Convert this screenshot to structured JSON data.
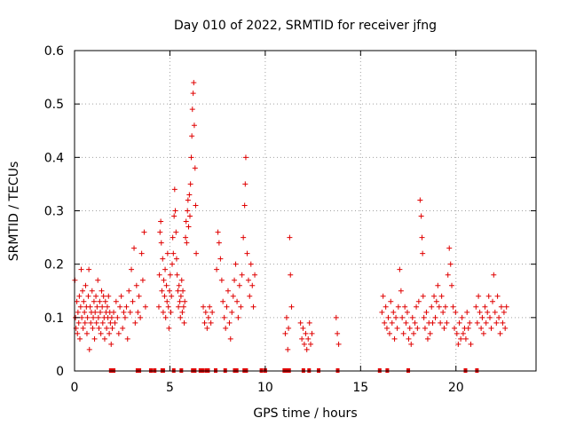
{
  "chart_data": {
    "type": "scatter",
    "title": "Day 010 of 2022, SRMTID for receiver jfng",
    "xlabel": "GPS time / hours",
    "ylabel": "SRMTID / TECUs",
    "xlim": [
      0,
      24.2
    ],
    "ylim": [
      0,
      0.6
    ],
    "x_ticks": [
      0,
      5,
      10,
      15,
      20
    ],
    "x_tick_labels": [
      "0",
      "5",
      "10",
      "15",
      "20"
    ],
    "y_ticks": [
      0,
      0.1,
      0.2,
      0.3,
      0.4,
      0.5,
      0.6
    ],
    "y_tick_labels": [
      "0",
      "0.1",
      "0.2",
      "0.3",
      "0.4",
      "0.5",
      "0.6"
    ],
    "grid": true,
    "marker": "+",
    "colors": {
      "series": "#e00000",
      "axis": "#000000",
      "grid": "#a0a0a0"
    },
    "series": [
      {
        "name": "SRMTID",
        "points": [
          [
            0.02,
            0.17
          ],
          [
            0.05,
            0.1
          ],
          [
            0.08,
            0.08
          ],
          [
            0.12,
            0.13
          ],
          [
            0.15,
            0.07
          ],
          [
            0.18,
            0.11
          ],
          [
            0.22,
            0.09
          ],
          [
            0.25,
            0.14
          ],
          [
            0.28,
            0.06
          ],
          [
            0.32,
            0.12
          ],
          [
            0.35,
            0.19
          ],
          [
            0.38,
            0.1
          ],
          [
            0.42,
            0.15
          ],
          [
            0.45,
            0.08
          ],
          [
            0.48,
            0.13
          ],
          [
            0.52,
            0.11
          ],
          [
            0.55,
            0.09
          ],
          [
            0.58,
            0.16
          ],
          [
            0.62,
            0.12
          ],
          [
            0.65,
            0.07
          ],
          [
            0.68,
            0.1
          ],
          [
            0.72,
            0.14
          ],
          [
            0.75,
            0.19
          ],
          [
            0.78,
            0.04
          ],
          [
            0.82,
            0.12
          ],
          [
            0.85,
            0.09
          ],
          [
            0.88,
            0.11
          ],
          [
            0.92,
            0.15
          ],
          [
            0.95,
            0.08
          ],
          [
            0.98,
            0.1
          ],
          [
            1.02,
            0.13
          ],
          [
            1.05,
            0.06
          ],
          [
            1.08,
            0.11
          ],
          [
            1.12,
            0.14
          ],
          [
            1.15,
            0.09
          ],
          [
            1.18,
            0.12
          ],
          [
            1.22,
            0.17
          ],
          [
            1.25,
            0.1
          ],
          [
            1.28,
            0.08
          ],
          [
            1.32,
            0.13
          ],
          [
            1.35,
            0.11
          ],
          [
            1.38,
            0.07
          ],
          [
            1.42,
            0.15
          ],
          [
            1.45,
            0.12
          ],
          [
            1.48,
            0.09
          ],
          [
            1.52,
            0.14
          ],
          [
            1.55,
            0.1
          ],
          [
            1.58,
            0.06
          ],
          [
            1.62,
            0.13
          ],
          [
            1.65,
            0.11
          ],
          [
            1.68,
            0.08
          ],
          [
            1.72,
            0.12
          ],
          [
            1.75,
            0.1
          ],
          [
            1.78,
            0.14
          ],
          [
            1.82,
            0.07
          ],
          [
            1.85,
            0.11
          ],
          [
            1.88,
            0.09
          ],
          [
            1.92,
            0.05
          ],
          [
            1.95,
            0.1
          ],
          [
            1.98,
            0.08
          ],
          [
            2.05,
            0.11
          ],
          [
            2.12,
            0.09
          ],
          [
            2.18,
            0.13
          ],
          [
            2.25,
            0.1
          ],
          [
            2.32,
            0.07
          ],
          [
            2.38,
            0.12
          ],
          [
            2.45,
            0.14
          ],
          [
            2.52,
            0.08
          ],
          [
            2.58,
            0.11
          ],
          [
            2.65,
            0.1
          ],
          [
            2.72,
            0.12
          ],
          [
            2.78,
            0.06
          ],
          [
            2.85,
            0.15
          ],
          [
            2.92,
            0.11
          ],
          [
            2.98,
            0.19
          ],
          [
            3.05,
            0.13
          ],
          [
            3.12,
            0.23
          ],
          [
            3.18,
            0.09
          ],
          [
            3.25,
            0.16
          ],
          [
            3.32,
            0.11
          ],
          [
            3.38,
            0.14
          ],
          [
            3.45,
            0.1
          ],
          [
            3.52,
            0.22
          ],
          [
            3.58,
            0.17
          ],
          [
            3.65,
            0.26
          ],
          [
            3.72,
            0.12
          ],
          [
            4.42,
            0.12
          ],
          [
            4.45,
            0.18
          ],
          [
            4.48,
            0.26
          ],
          [
            4.52,
            0.28
          ],
          [
            4.55,
            0.24
          ],
          [
            4.58,
            0.15
          ],
          [
            4.62,
            0.21
          ],
          [
            4.65,
            0.11
          ],
          [
            4.68,
            0.17
          ],
          [
            4.72,
            0.14
          ],
          [
            4.75,
            0.19
          ],
          [
            4.78,
            0.1
          ],
          [
            4.82,
            0.16
          ],
          [
            4.85,
            0.13
          ],
          [
            4.88,
            0.22
          ],
          [
            4.92,
            0.12
          ],
          [
            4.95,
            0.08
          ],
          [
            4.98,
            0.15
          ],
          [
            5.02,
            0.18
          ],
          [
            5.05,
            0.11
          ],
          [
            5.08,
            0.14
          ],
          [
            5.12,
            0.2
          ],
          [
            5.15,
            0.25
          ],
          [
            5.18,
            0.22
          ],
          [
            5.22,
            0.29
          ],
          [
            5.25,
            0.34
          ],
          [
            5.28,
            0.3
          ],
          [
            5.32,
            0.26
          ],
          [
            5.35,
            0.21
          ],
          [
            5.38,
            0.18
          ],
          [
            5.42,
            0.15
          ],
          [
            5.45,
            0.12
          ],
          [
            5.48,
            0.16
          ],
          [
            5.52,
            0.13
          ],
          [
            5.55,
            0.1
          ],
          [
            5.58,
            0.14
          ],
          [
            5.62,
            0.17
          ],
          [
            5.65,
            0.11
          ],
          [
            5.68,
            0.15
          ],
          [
            5.72,
            0.12
          ],
          [
            5.75,
            0.09
          ],
          [
            5.78,
            0.13
          ],
          [
            5.82,
            0.25
          ],
          [
            5.85,
            0.28
          ],
          [
            5.88,
            0.24
          ],
          [
            5.92,
            0.3
          ],
          [
            5.95,
            0.32
          ],
          [
            5.98,
            0.27
          ],
          [
            6.02,
            0.33
          ],
          [
            6.05,
            0.29
          ],
          [
            6.08,
            0.35
          ],
          [
            6.12,
            0.4
          ],
          [
            6.15,
            0.44
          ],
          [
            6.18,
            0.49
          ],
          [
            6.22,
            0.52
          ],
          [
            6.25,
            0.54
          ],
          [
            6.28,
            0.46
          ],
          [
            6.32,
            0.38
          ],
          [
            6.35,
            0.31
          ],
          [
            6.38,
            0.22
          ],
          [
            6.75,
            0.12
          ],
          [
            6.82,
            0.09
          ],
          [
            6.88,
            0.11
          ],
          [
            6.95,
            0.08
          ],
          [
            7.02,
            0.1
          ],
          [
            7.08,
            0.12
          ],
          [
            7.15,
            0.09
          ],
          [
            7.22,
            0.11
          ],
          [
            7.45,
            0.19
          ],
          [
            7.52,
            0.26
          ],
          [
            7.58,
            0.24
          ],
          [
            7.65,
            0.21
          ],
          [
            7.72,
            0.17
          ],
          [
            7.78,
            0.13
          ],
          [
            7.85,
            0.1
          ],
          [
            7.92,
            0.08
          ],
          [
            7.98,
            0.12
          ],
          [
            8.05,
            0.15
          ],
          [
            8.12,
            0.09
          ],
          [
            8.18,
            0.06
          ],
          [
            8.25,
            0.11
          ],
          [
            8.32,
            0.14
          ],
          [
            8.38,
            0.17
          ],
          [
            8.45,
            0.2
          ],
          [
            8.52,
            0.13
          ],
          [
            8.58,
            0.1
          ],
          [
            8.65,
            0.16
          ],
          [
            8.72,
            0.12
          ],
          [
            8.78,
            0.18
          ],
          [
            8.85,
            0.25
          ],
          [
            8.92,
            0.31
          ],
          [
            8.95,
            0.35
          ],
          [
            8.98,
            0.4
          ],
          [
            9.05,
            0.22
          ],
          [
            9.12,
            0.17
          ],
          [
            9.18,
            0.14
          ],
          [
            9.25,
            0.2
          ],
          [
            9.32,
            0.16
          ],
          [
            9.38,
            0.12
          ],
          [
            9.45,
            0.18
          ],
          [
            11.05,
            0.07
          ],
          [
            11.12,
            0.1
          ],
          [
            11.18,
            0.04
          ],
          [
            11.22,
            0.08
          ],
          [
            11.28,
            0.25
          ],
          [
            11.32,
            0.18
          ],
          [
            11.38,
            0.12
          ],
          [
            11.85,
            0.09
          ],
          [
            11.92,
            0.06
          ],
          [
            11.98,
            0.08
          ],
          [
            12.05,
            0.05
          ],
          [
            12.12,
            0.07
          ],
          [
            12.18,
            0.04
          ],
          [
            12.25,
            0.06
          ],
          [
            12.32,
            0.09
          ],
          [
            12.38,
            0.05
          ],
          [
            12.45,
            0.07
          ],
          [
            13.72,
            0.1
          ],
          [
            13.78,
            0.07
          ],
          [
            13.85,
            0.05
          ],
          [
            16.12,
            0.11
          ],
          [
            16.18,
            0.14
          ],
          [
            16.25,
            0.09
          ],
          [
            16.32,
            0.12
          ],
          [
            16.38,
            0.08
          ],
          [
            16.45,
            0.1
          ],
          [
            16.52,
            0.07
          ],
          [
            16.58,
            0.13
          ],
          [
            16.65,
            0.09
          ],
          [
            16.72,
            0.11
          ],
          [
            16.78,
            0.06
          ],
          [
            16.85,
            0.1
          ],
          [
            16.92,
            0.08
          ],
          [
            16.98,
            0.12
          ],
          [
            17.05,
            0.19
          ],
          [
            17.12,
            0.15
          ],
          [
            17.18,
            0.1
          ],
          [
            17.25,
            0.07
          ],
          [
            17.32,
            0.12
          ],
          [
            17.38,
            0.09
          ],
          [
            17.45,
            0.11
          ],
          [
            17.52,
            0.06
          ],
          [
            17.58,
            0.08
          ],
          [
            17.65,
            0.05
          ],
          [
            17.72,
            0.1
          ],
          [
            17.78,
            0.07
          ],
          [
            17.85,
            0.09
          ],
          [
            17.92,
            0.12
          ],
          [
            17.98,
            0.08
          ],
          [
            18.05,
            0.13
          ],
          [
            18.12,
            0.32
          ],
          [
            18.18,
            0.29
          ],
          [
            18.22,
            0.25
          ],
          [
            18.25,
            0.22
          ],
          [
            18.28,
            0.14
          ],
          [
            18.32,
            0.1
          ],
          [
            18.38,
            0.08
          ],
          [
            18.45,
            0.11
          ],
          [
            18.52,
            0.06
          ],
          [
            18.58,
            0.09
          ],
          [
            18.65,
            0.07
          ],
          [
            18.72,
            0.12
          ],
          [
            18.78,
            0.09
          ],
          [
            18.85,
            0.14
          ],
          [
            18.92,
            0.1
          ],
          [
            18.98,
            0.13
          ],
          [
            19.05,
            0.16
          ],
          [
            19.12,
            0.12
          ],
          [
            19.18,
            0.09
          ],
          [
            19.25,
            0.14
          ],
          [
            19.32,
            0.11
          ],
          [
            19.38,
            0.08
          ],
          [
            19.45,
            0.12
          ],
          [
            19.52,
            0.09
          ],
          [
            19.58,
            0.18
          ],
          [
            19.65,
            0.23
          ],
          [
            19.72,
            0.2
          ],
          [
            19.78,
            0.16
          ],
          [
            19.85,
            0.12
          ],
          [
            19.92,
            0.08
          ],
          [
            19.98,
            0.11
          ],
          [
            20.05,
            0.07
          ],
          [
            20.12,
            0.05
          ],
          [
            20.18,
            0.09
          ],
          [
            20.25,
            0.06
          ],
          [
            20.32,
            0.1
          ],
          [
            20.38,
            0.07
          ],
          [
            20.45,
            0.08
          ],
          [
            20.52,
            0.06
          ],
          [
            20.58,
            0.11
          ],
          [
            20.65,
            0.08
          ],
          [
            20.72,
            0.09
          ],
          [
            20.78,
            0.05
          ],
          [
            21.05,
            0.12
          ],
          [
            21.12,
            0.09
          ],
          [
            21.18,
            0.14
          ],
          [
            21.25,
            0.11
          ],
          [
            21.32,
            0.08
          ],
          [
            21.38,
            0.1
          ],
          [
            21.45,
            0.07
          ],
          [
            21.52,
            0.12
          ],
          [
            21.58,
            0.09
          ],
          [
            21.65,
            0.11
          ],
          [
            21.72,
            0.14
          ],
          [
            21.78,
            0.1
          ],
          [
            21.85,
            0.08
          ],
          [
            21.92,
            0.13
          ],
          [
            21.98,
            0.18
          ],
          [
            22.05,
            0.11
          ],
          [
            22.12,
            0.09
          ],
          [
            22.18,
            0.14
          ],
          [
            22.25,
            0.1
          ],
          [
            22.32,
            0.07
          ],
          [
            22.38,
            0.12
          ],
          [
            22.45,
            0.09
          ],
          [
            22.52,
            0.11
          ],
          [
            22.58,
            0.08
          ],
          [
            22.65,
            0.12
          ]
        ]
      }
    ],
    "zero_markers": [
      1.9,
      2.05,
      3.3,
      3.4,
      4.0,
      4.2,
      4.6,
      4.65,
      5.2,
      5.6,
      6.2,
      6.3,
      6.6,
      6.7,
      6.9,
      7.0,
      7.4,
      7.9,
      8.4,
      8.5,
      8.9,
      9.0,
      9.8,
      10.0,
      11.0,
      11.1,
      11.25,
      12.0,
      12.3,
      12.8,
      13.8,
      16.0,
      16.4,
      17.5,
      20.5,
      21.1
    ]
  }
}
